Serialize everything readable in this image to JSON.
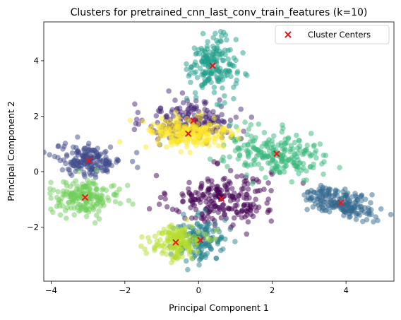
{
  "chart_data": {
    "type": "scatter",
    "title": "Clusters for pretrained_cnn_last_conv_train_features (k=10)",
    "xlabel": "Principal Component 1",
    "ylabel": "Principal Component 2",
    "xlim": [
      -4.2,
      5.3
    ],
    "ylim": [
      -3.95,
      5.4
    ],
    "xticks": [
      -4,
      -2,
      0,
      2,
      4
    ],
    "yticks": [
      -2,
      0,
      2,
      4
    ],
    "grid": false,
    "legend": {
      "placement": "top-right",
      "entries": [
        "Cluster Centers"
      ]
    },
    "centers_color": "#e41a1c",
    "cluster_palette": [
      "#440154",
      "#482878",
      "#3e4989",
      "#31688e",
      "#26828e",
      "#1f9e89",
      "#35b779",
      "#6ece58",
      "#b5de2b",
      "#fde725"
    ],
    "clusters": [
      {
        "label": 0,
        "color": "#440154",
        "center": [
          0.62,
          -0.98
        ]
      },
      {
        "label": 1,
        "color": "#482878",
        "center": [
          -0.14,
          1.84
        ]
      },
      {
        "label": 2,
        "color": "#3e4989",
        "center": [
          -2.98,
          0.4
        ]
      },
      {
        "label": 3,
        "color": "#31688e",
        "center": [
          3.86,
          -1.12
        ]
      },
      {
        "label": 4,
        "color": "#26828e",
        "center": [
          0.05,
          -2.47
        ]
      },
      {
        "label": 5,
        "color": "#1f9e89",
        "center": [
          0.38,
          3.82
        ]
      },
      {
        "label": 6,
        "color": "#35b779",
        "center": [
          2.12,
          0.64
        ]
      },
      {
        "label": 7,
        "color": "#6ece58",
        "center": [
          -3.08,
          -0.93
        ]
      },
      {
        "label": 8,
        "color": "#b5de2b",
        "center": [
          -0.62,
          -2.55
        ]
      },
      {
        "label": 9,
        "color": "#fde725",
        "center": [
          -0.28,
          1.37
        ]
      }
    ]
  }
}
